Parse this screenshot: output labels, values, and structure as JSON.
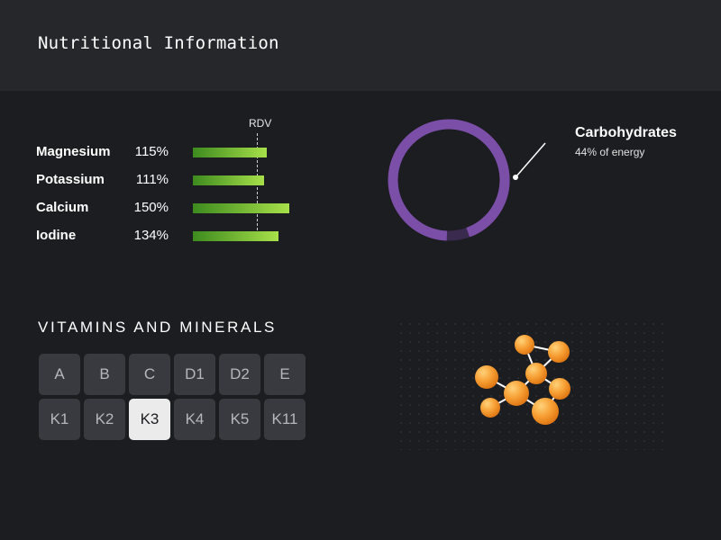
{
  "header": {
    "title": "Nutritional Information"
  },
  "nutrients": {
    "rdv_label": "RDV",
    "items": [
      {
        "name": "Magnesium",
        "percent_label": "115%",
        "value": 115
      },
      {
        "name": "Potassium",
        "percent_label": "111%",
        "value": 111
      },
      {
        "name": "Calcium",
        "percent_label": "150%",
        "value": 150
      },
      {
        "name": "Iodine",
        "percent_label": "134%",
        "value": 134
      }
    ],
    "bar_colors": [
      "#3d8a1e",
      "#a7e04a"
    ]
  },
  "energy": {
    "label": "Carbohydrates",
    "sub_label": "44% of energy",
    "value_percent": 44,
    "color": "#7b4fa8"
  },
  "vitamins": {
    "title": "VITAMINS AND MINERALS",
    "items": [
      "A",
      "B",
      "C",
      "D1",
      "D2",
      "E",
      "K1",
      "K2",
      "K3",
      "K4",
      "K5",
      "K11"
    ],
    "selected": "K3"
  },
  "molecule": {
    "icon": "molecule-icon",
    "color": "#f59a2c"
  }
}
